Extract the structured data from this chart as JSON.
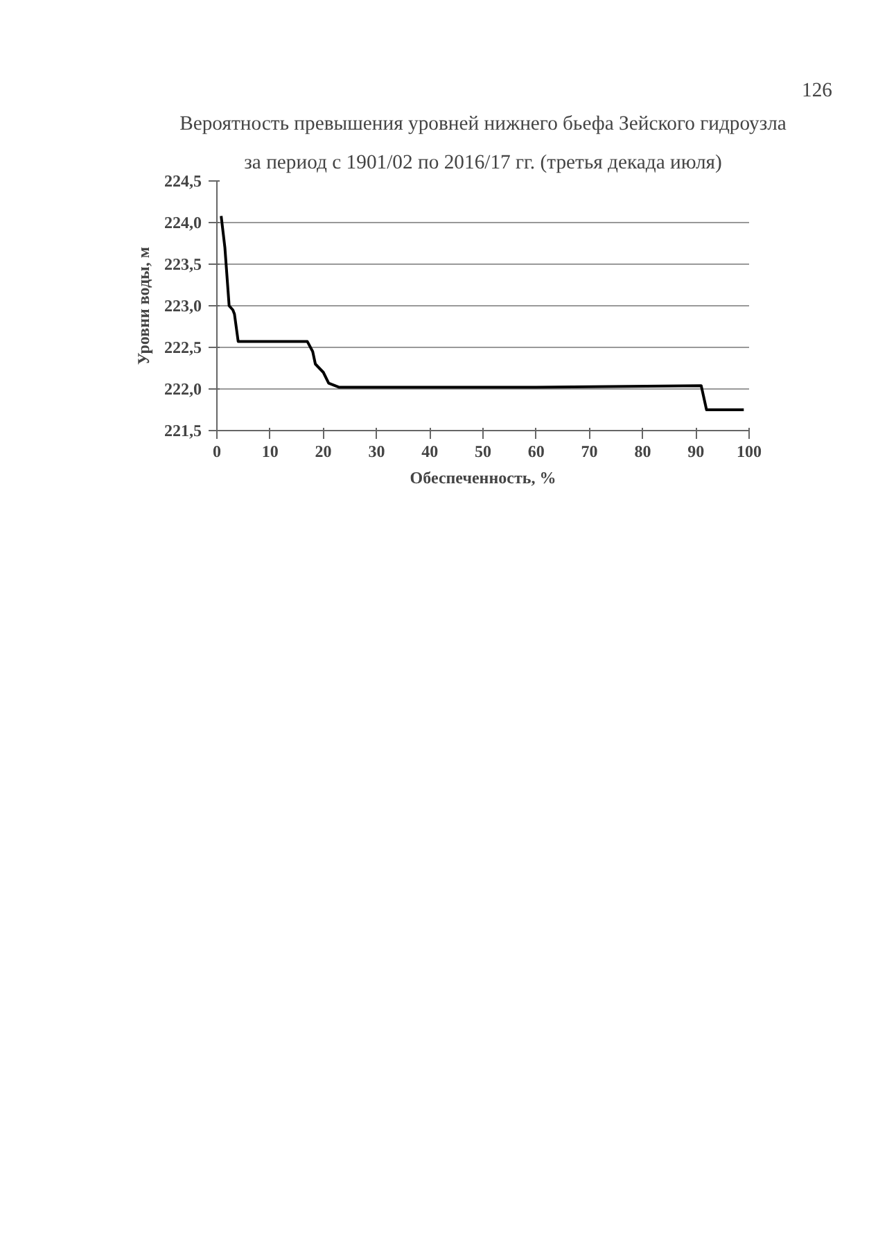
{
  "chart_data": {
    "type": "line",
    "title": "Вероятность превышения уровней нижнего бьефа Зейского гидроузла",
    "subtitle": "за период с 1901/02 по 2016/17 гг. (третья декада июля)",
    "xlabel": "Обеспеченность, %",
    "ylabel": "Уровни воды, м",
    "annotations": [
      "126"
    ],
    "x": [
      0.8,
      1.5,
      2.3,
      3,
      3.3,
      4,
      17,
      18,
      18.5,
      20,
      21,
      23,
      60,
      91,
      92,
      99
    ],
    "series": [
      {
        "color": "#000000",
        "values": [
          224.08,
          223.7,
          223.0,
          222.95,
          222.9,
          222.57,
          222.57,
          222.45,
          222.3,
          222.2,
          222.07,
          222.02,
          222.02,
          222.04,
          221.75,
          221.75
        ]
      }
    ],
    "xlim": [
      0,
      100
    ],
    "ylim": [
      221.5,
      224.5
    ],
    "xticks": [
      0,
      10,
      20,
      30,
      40,
      50,
      60,
      70,
      80,
      90,
      100
    ],
    "yticks": [
      {
        "value": 221.5,
        "label": "221,5"
      },
      {
        "value": 222.0,
        "label": "222,0"
      },
      {
        "value": 222.5,
        "label": "222,5"
      },
      {
        "value": 223.0,
        "label": "223,0"
      },
      {
        "value": 223.5,
        "label": "223,5"
      },
      {
        "value": 224.0,
        "label": "224,0"
      },
      {
        "value": 224.5,
        "label": "224,5"
      }
    ],
    "grid": "y",
    "marker": "none",
    "line_style": "solid"
  }
}
